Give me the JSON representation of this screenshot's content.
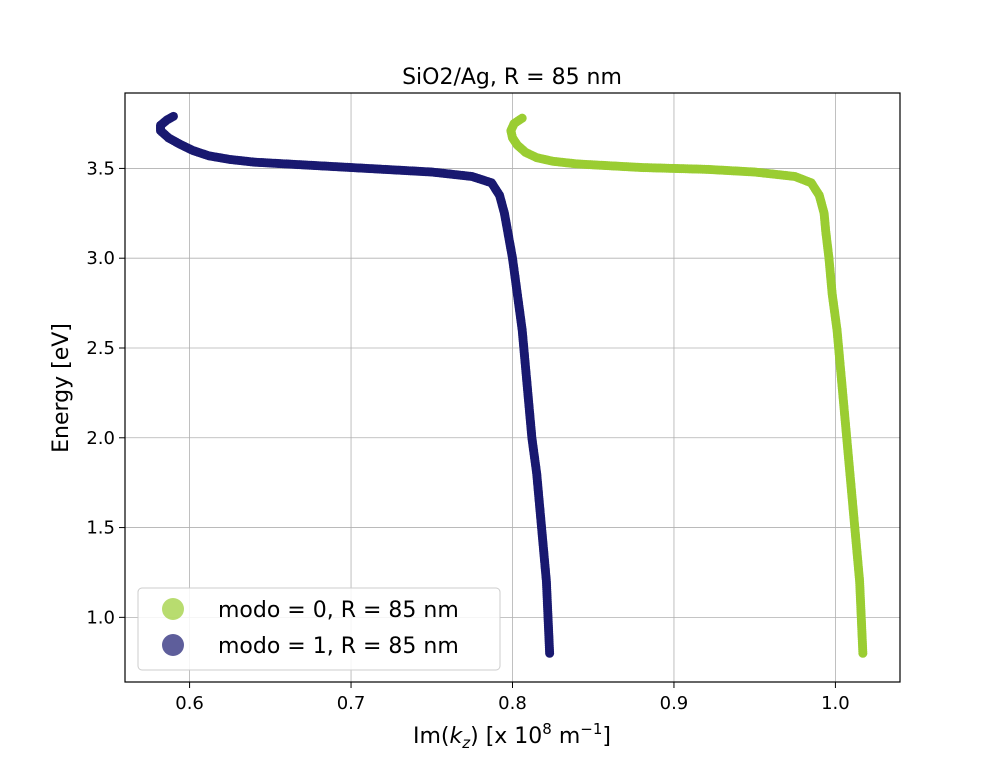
{
  "chart_data": {
    "type": "scatter",
    "title": "SiO2/Ag, R = 85 nm",
    "xlabel": {
      "prefix": "Im(",
      "var": "k",
      "sub": "z",
      "mid": ") [x 10",
      "sup1": "8",
      "unit": " m",
      "sup2": "−1",
      "suffix": "]"
    },
    "ylabel": "Energy [eV]",
    "xlim": [
      0.56,
      1.04
    ],
    "ylim": [
      0.64,
      3.92
    ],
    "xticks": [
      "0.6",
      "0.7",
      "0.8",
      "0.9",
      "1.0"
    ],
    "xtick_values": [
      0.6,
      0.7,
      0.8,
      0.9,
      1.0
    ],
    "yticks": [
      "1.0",
      "1.5",
      "2.0",
      "2.5",
      "3.0",
      "3.5"
    ],
    "ytick_values": [
      1.0,
      1.5,
      2.0,
      2.5,
      3.0,
      3.5
    ],
    "grid": true,
    "legend_position": "lower-left",
    "series": [
      {
        "name": "modo = 0, R = 85 nm",
        "color": "#9acd32",
        "points": [
          [
            1.017,
            0.8
          ],
          [
            1.016,
            1.0
          ],
          [
            1.015,
            1.2
          ],
          [
            1.013,
            1.4
          ],
          [
            1.011,
            1.6
          ],
          [
            1.009,
            1.8
          ],
          [
            1.007,
            2.0
          ],
          [
            1.005,
            2.2
          ],
          [
            1.003,
            2.4
          ],
          [
            1.001,
            2.6
          ],
          [
            0.998,
            2.8
          ],
          [
            0.996,
            3.0
          ],
          [
            0.994,
            3.15
          ],
          [
            0.993,
            3.25
          ],
          [
            0.99,
            3.35
          ],
          [
            0.985,
            3.42
          ],
          [
            0.975,
            3.455
          ],
          [
            0.95,
            3.48
          ],
          [
            0.92,
            3.495
          ],
          [
            0.9,
            3.5
          ],
          [
            0.88,
            3.505
          ],
          [
            0.86,
            3.515
          ],
          [
            0.84,
            3.525
          ],
          [
            0.825,
            3.54
          ],
          [
            0.815,
            3.56
          ],
          [
            0.808,
            3.59
          ],
          [
            0.803,
            3.63
          ],
          [
            0.8,
            3.67
          ],
          [
            0.799,
            3.71
          ],
          [
            0.801,
            3.75
          ],
          [
            0.806,
            3.78
          ]
        ]
      },
      {
        "name": "modo = 1, R = 85 nm",
        "color": "#191970",
        "points": [
          [
            0.823,
            0.8
          ],
          [
            0.822,
            1.0
          ],
          [
            0.821,
            1.2
          ],
          [
            0.819,
            1.4
          ],
          [
            0.817,
            1.6
          ],
          [
            0.815,
            1.8
          ],
          [
            0.812,
            2.0
          ],
          [
            0.81,
            2.2
          ],
          [
            0.808,
            2.4
          ],
          [
            0.806,
            2.6
          ],
          [
            0.803,
            2.8
          ],
          [
            0.8,
            3.0
          ],
          [
            0.797,
            3.15
          ],
          [
            0.795,
            3.25
          ],
          [
            0.792,
            3.35
          ],
          [
            0.787,
            3.42
          ],
          [
            0.775,
            3.455
          ],
          [
            0.75,
            3.48
          ],
          [
            0.72,
            3.495
          ],
          [
            0.7,
            3.505
          ],
          [
            0.68,
            3.515
          ],
          [
            0.66,
            3.525
          ],
          [
            0.64,
            3.535
          ],
          [
            0.625,
            3.55
          ],
          [
            0.612,
            3.57
          ],
          [
            0.602,
            3.6
          ],
          [
            0.594,
            3.635
          ],
          [
            0.587,
            3.67
          ],
          [
            0.582,
            3.71
          ],
          [
            0.582,
            3.74
          ],
          [
            0.586,
            3.77
          ],
          [
            0.59,
            3.79
          ]
        ]
      }
    ]
  }
}
